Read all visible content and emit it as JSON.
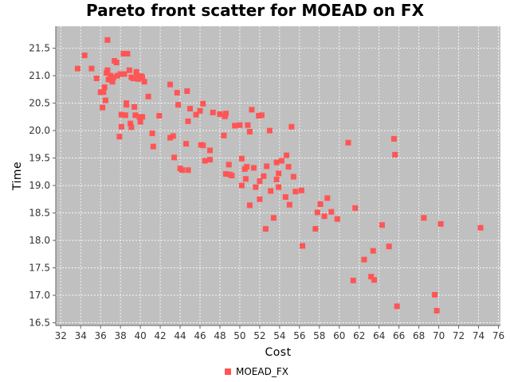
{
  "chart_data": {
    "type": "scatter",
    "title": "Pareto front scatter for MOEAD on FX",
    "xlabel": "Cost",
    "ylabel": "Time",
    "xlim": [
      31.5,
      76.2
    ],
    "ylim": [
      16.45,
      21.9
    ],
    "xticks": [
      32,
      34,
      36,
      38,
      40,
      42,
      44,
      46,
      48,
      50,
      52,
      54,
      56,
      58,
      60,
      62,
      64,
      66,
      68,
      70,
      72,
      74,
      76
    ],
    "yticks": [
      16.5,
      17.0,
      17.5,
      18.0,
      18.5,
      19.0,
      19.5,
      20.0,
      20.5,
      21.0,
      21.5
    ],
    "grid": true,
    "legend_position": "bottom-center",
    "colors": {
      "plot_bg": "#c0c0c0",
      "marker": "#ff5555",
      "grid": "#ffffff"
    },
    "series": [
      {
        "name": "MOEAD_FX",
        "points": [
          [
            33.7,
            21.13
          ],
          [
            34.4,
            21.37
          ],
          [
            35.1,
            21.13
          ],
          [
            35.6,
            20.95
          ],
          [
            36.0,
            20.7
          ],
          [
            36.2,
            20.42
          ],
          [
            36.3,
            20.7
          ],
          [
            36.4,
            20.79
          ],
          [
            36.5,
            20.55
          ],
          [
            36.6,
            21.05
          ],
          [
            36.7,
            21.65
          ],
          [
            36.7,
            21.1
          ],
          [
            36.8,
            20.93
          ],
          [
            37.0,
            21.0
          ],
          [
            37.1,
            20.92
          ],
          [
            37.2,
            20.89
          ],
          [
            37.3,
            20.97
          ],
          [
            37.4,
            21.27
          ],
          [
            37.6,
            21.24
          ],
          [
            37.7,
            21.0
          ],
          [
            37.9,
            19.89
          ],
          [
            38.0,
            21.03
          ],
          [
            38.1,
            20.07
          ],
          [
            38.1,
            20.29
          ],
          [
            38.3,
            21.4
          ],
          [
            38.4,
            21.03
          ],
          [
            38.5,
            20.28
          ],
          [
            38.6,
            20.47
          ],
          [
            38.6,
            20.5
          ],
          [
            38.7,
            21.4
          ],
          [
            38.9,
            21.1
          ],
          [
            39.0,
            20.13
          ],
          [
            39.1,
            20.06
          ],
          [
            39.1,
            20.97
          ],
          [
            39.3,
            20.95
          ],
          [
            39.4,
            20.43
          ],
          [
            39.5,
            20.28
          ],
          [
            39.6,
            21.07
          ],
          [
            39.7,
            21.0
          ],
          [
            39.8,
            20.94
          ],
          [
            39.9,
            20.25
          ],
          [
            40.0,
            20.16
          ],
          [
            40.1,
            20.99
          ],
          [
            40.2,
            20.25
          ],
          [
            40.2,
            20.97
          ],
          [
            40.4,
            20.89
          ],
          [
            40.8,
            20.62
          ],
          [
            41.2,
            19.95
          ],
          [
            41.3,
            19.71
          ],
          [
            41.9,
            20.27
          ],
          [
            43.0,
            20.84
          ],
          [
            43.0,
            19.87
          ],
          [
            43.3,
            19.9
          ],
          [
            43.4,
            19.51
          ],
          [
            43.7,
            20.69
          ],
          [
            43.8,
            20.47
          ],
          [
            44.0,
            19.31
          ],
          [
            44.2,
            19.28
          ],
          [
            44.6,
            19.76
          ],
          [
            44.7,
            20.72
          ],
          [
            44.8,
            19.28
          ],
          [
            44.8,
            20.17
          ],
          [
            45.0,
            20.4
          ],
          [
            45.6,
            20.29
          ],
          [
            46.0,
            20.36
          ],
          [
            46.1,
            19.74
          ],
          [
            46.3,
            20.49
          ],
          [
            46.3,
            19.73
          ],
          [
            46.5,
            19.45
          ],
          [
            47.0,
            19.47
          ],
          [
            47.0,
            19.64
          ],
          [
            47.3,
            20.33
          ],
          [
            48.0,
            20.3
          ],
          [
            48.4,
            19.91
          ],
          [
            48.5,
            20.26
          ],
          [
            48.6,
            20.31
          ],
          [
            48.6,
            19.21
          ],
          [
            48.9,
            19.38
          ],
          [
            49.0,
            19.2
          ],
          [
            49.2,
            19.18
          ],
          [
            49.5,
            20.09
          ],
          [
            50.0,
            20.1
          ],
          [
            50.2,
            19.0
          ],
          [
            50.2,
            19.49
          ],
          [
            50.5,
            19.3
          ],
          [
            50.6,
            19.12
          ],
          [
            50.7,
            19.34
          ],
          [
            50.8,
            20.1
          ],
          [
            51.0,
            19.98
          ],
          [
            51.0,
            18.64
          ],
          [
            51.2,
            20.38
          ],
          [
            51.4,
            19.32
          ],
          [
            51.6,
            18.97
          ],
          [
            51.9,
            20.27
          ],
          [
            52.0,
            19.08
          ],
          [
            52.0,
            18.75
          ],
          [
            52.2,
            20.28
          ],
          [
            52.4,
            19.17
          ],
          [
            52.6,
            18.21
          ],
          [
            52.7,
            19.35
          ],
          [
            53.0,
            20.0
          ],
          [
            53.1,
            18.9
          ],
          [
            53.4,
            18.41
          ],
          [
            53.7,
            19.42
          ],
          [
            53.7,
            19.11
          ],
          [
            53.9,
            18.97
          ],
          [
            53.9,
            19.22
          ],
          [
            54.2,
            19.45
          ],
          [
            54.6,
            18.79
          ],
          [
            54.7,
            19.55
          ],
          [
            54.9,
            19.34
          ],
          [
            55.0,
            18.65
          ],
          [
            55.2,
            20.07
          ],
          [
            55.4,
            19.16
          ],
          [
            55.6,
            18.89
          ],
          [
            56.2,
            18.91
          ],
          [
            56.3,
            17.9
          ],
          [
            57.6,
            18.21
          ],
          [
            57.8,
            18.51
          ],
          [
            58.1,
            18.66
          ],
          [
            58.5,
            18.44
          ],
          [
            58.8,
            18.77
          ],
          [
            59.2,
            18.52
          ],
          [
            59.8,
            18.39
          ],
          [
            60.9,
            19.78
          ],
          [
            61.4,
            17.27
          ],
          [
            61.6,
            18.59
          ],
          [
            62.5,
            17.65
          ],
          [
            63.2,
            17.34
          ],
          [
            63.4,
            17.81
          ],
          [
            63.5,
            17.28
          ],
          [
            64.3,
            18.28
          ],
          [
            65.0,
            17.89
          ],
          [
            65.5,
            19.85
          ],
          [
            65.6,
            19.56
          ],
          [
            65.8,
            16.8
          ],
          [
            68.5,
            18.41
          ],
          [
            69.6,
            17.01
          ],
          [
            69.8,
            16.72
          ],
          [
            70.2,
            18.3
          ],
          [
            74.2,
            18.23
          ]
        ]
      }
    ]
  }
}
